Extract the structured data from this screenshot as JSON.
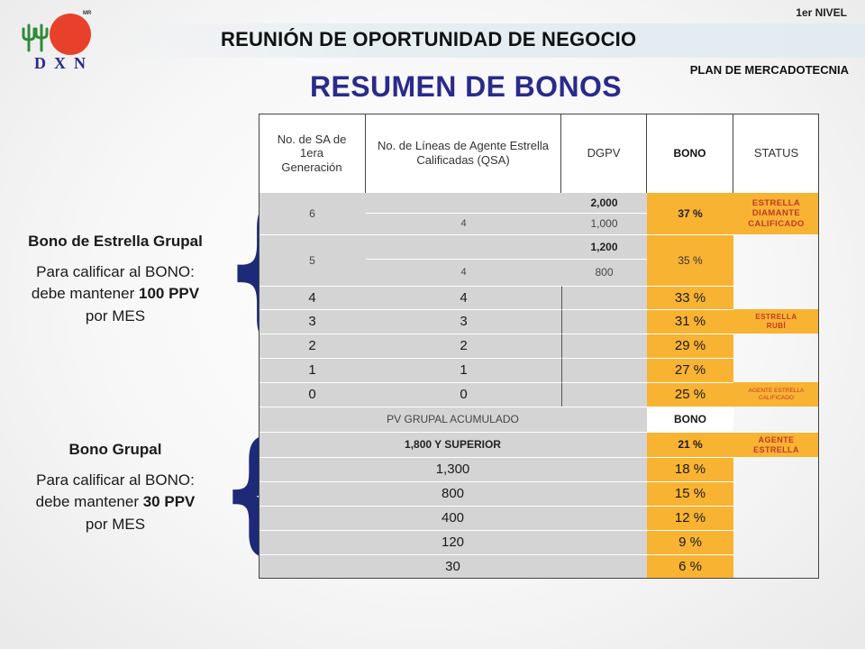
{
  "brand": {
    "name": "DXN",
    "mark": "MR"
  },
  "header": {
    "level": "1er NIVEL",
    "meeting_title": "REUNIÓN DE OPORTUNIDAD DE NEGOCIO",
    "section": "PLAN DE MERCADOTECNIA",
    "page_title": "RESUMEN DE BONOS"
  },
  "left_panel": {
    "star_group": {
      "title": "Bono de Estrella Grupal",
      "text_before": "Para calificar al BONO: debe mantener ",
      "highlight": "100 PPV",
      "text_after": " por MES"
    },
    "group": {
      "title": "Bono Grupal",
      "text_before": "Para calificar al BONO: debe mantener ",
      "highlight": "30 PPV",
      "text_after": " por MES"
    }
  },
  "table": {
    "headers": {
      "sa": "No. de SA de 1era Generación",
      "lines": "No. de Líneas de Agente Estrella Calificadas (QSA)",
      "dgpv": "DGPV",
      "bono": "BONO",
      "status": "STATUS"
    },
    "r1": {
      "sa": "6",
      "dgpv_a": "2,000",
      "lines_b": "4",
      "dgpv_b": "1,000",
      "bono": "37 %",
      "status": "ESTRELLA DIAMANTE CALIFICADO"
    },
    "r2": {
      "sa": "5",
      "dgpv_a": "1,200",
      "lines_b": "4",
      "dgpv_b": "800",
      "bono": "35 %"
    },
    "r3": {
      "sa": "4",
      "lines": "4",
      "bono": "33  %"
    },
    "r4": {
      "sa": "3",
      "lines": "3",
      "bono": "31 %",
      "status": "ESTRELLA RUBÍ"
    },
    "r5": {
      "sa": "2",
      "lines": "2",
      "bono": "29 %"
    },
    "r6": {
      "sa": "1",
      "lines": "1",
      "bono": "27 %"
    },
    "r7": {
      "sa": "0",
      "lines": "0",
      "bono": "25 %",
      "status": "AGENTE ESTRELLA CALIFICADO"
    },
    "pv_header": {
      "label": "PV GRUPAL ACUMULADO",
      "bono": "BONO"
    },
    "pv_rows": [
      {
        "pv": "1,800 Y SUPERIOR",
        "bono": "21 %",
        "status": "AGENTE ESTRELLA"
      },
      {
        "pv": "1,300",
        "bono": "18 %"
      },
      {
        "pv": "800",
        "bono": "15 %"
      },
      {
        "pv": "400",
        "bono": "12 %"
      },
      {
        "pv": "120",
        "bono": "9 %"
      },
      {
        "pv": "30",
        "bono": "6 %"
      }
    ]
  },
  "colors": {
    "title_blue": "#2a2a8c",
    "brace_blue": "#1e2a78",
    "bonus_orange": "#f8b332",
    "status_red": "#c0392b",
    "logo_red": "#e8412b",
    "logo_green": "#2e8b3a"
  }
}
